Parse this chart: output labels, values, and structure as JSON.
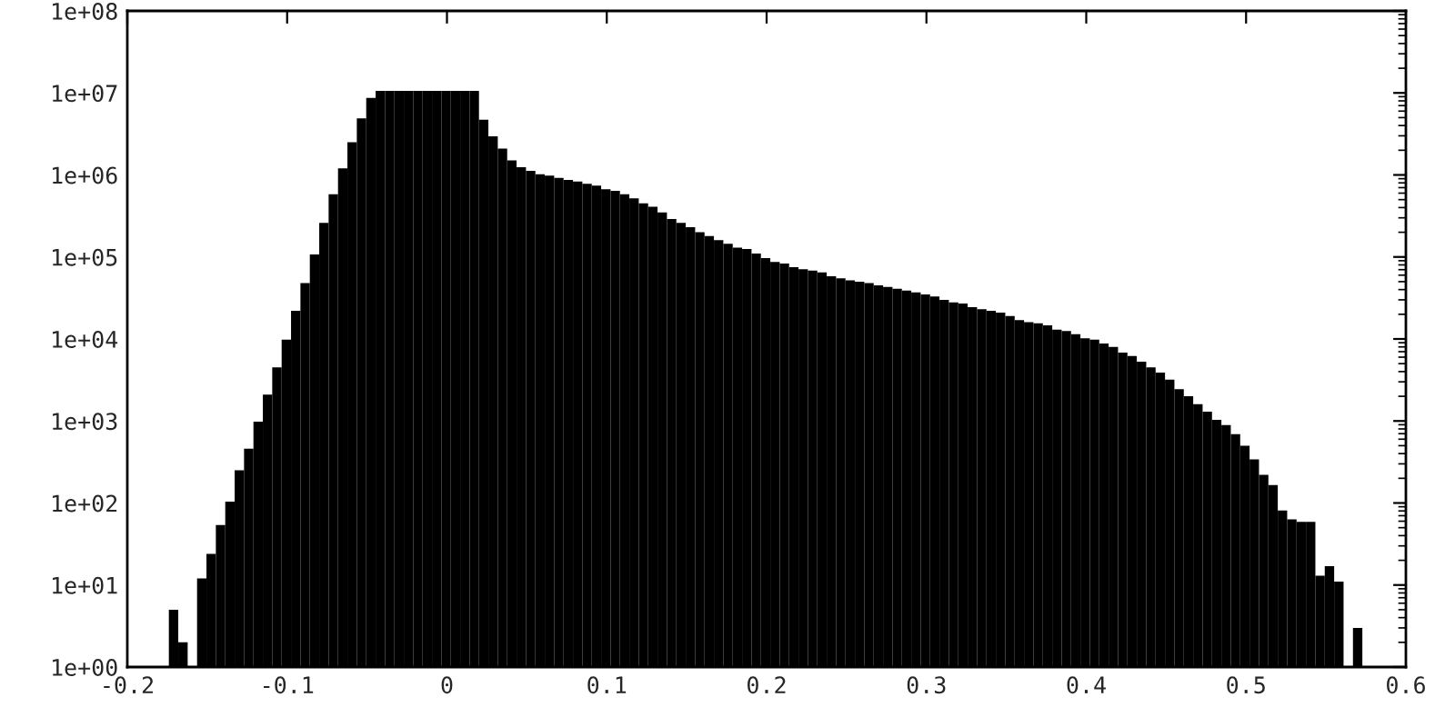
{
  "chart_data": {
    "type": "histogram",
    "bins": [
      -0.174,
      -0.16812,
      -0.16224,
      -0.15636,
      -0.15048,
      -0.1446,
      -0.13872,
      -0.13284,
      -0.12696,
      -0.12108,
      -0.1152,
      -0.10932,
      -0.10344,
      -0.09756,
      -0.09168,
      -0.0858,
      -0.07992,
      -0.07404,
      -0.06816,
      -0.06228,
      -0.0564,
      -0.05052,
      -0.04464,
      -0.03876,
      -0.03288,
      -0.027,
      -0.02112,
      -0.01524,
      -0.00936,
      -0.00348,
      0.0024,
      0.00828,
      0.01416,
      0.02004,
      0.02592,
      0.0318,
      0.03768,
      0.04356,
      0.04944,
      0.05532,
      0.0612,
      0.06708,
      0.07296,
      0.07884,
      0.08472,
      0.0906,
      0.09648,
      0.10236,
      0.10824,
      0.11412,
      0.12,
      0.12588,
      0.13176,
      0.13764,
      0.14352,
      0.1494,
      0.15528,
      0.16116,
      0.16704,
      0.17292,
      0.1788,
      0.18468,
      0.19056,
      0.19644,
      0.20232,
      0.2082,
      0.21408,
      0.21996,
      0.22584,
      0.23172,
      0.2376,
      0.24348,
      0.24936,
      0.25524,
      0.26112,
      0.267,
      0.27288,
      0.27876,
      0.28464,
      0.29052,
      0.2964,
      0.30228,
      0.30816,
      0.31404,
      0.31992,
      0.3258,
      0.33168,
      0.33756,
      0.34344,
      0.34932,
      0.3552,
      0.36108,
      0.36696,
      0.37284,
      0.37872,
      0.3846,
      0.39048,
      0.39636,
      0.40224,
      0.40812,
      0.414,
      0.41988,
      0.42576,
      0.43164,
      0.43752,
      0.4434,
      0.44928,
      0.45516,
      0.46104,
      0.46692,
      0.4728,
      0.47868,
      0.48456,
      0.49044,
      0.49632,
      0.5022,
      0.50808,
      0.51396,
      0.51984,
      0.52572,
      0.5316,
      0.53748,
      0.54336,
      0.54924,
      0.55512,
      0.561,
      0.56688,
      0.57276
    ],
    "values": [
      5,
      2,
      null,
      12,
      24,
      54,
      104,
      250,
      460,
      980,
      2100,
      4500,
      9800,
      22000,
      48000,
      107000,
      260000,
      580000,
      1200000,
      2500000,
      4900000,
      8700000,
      10600000,
      10600000,
      10600000,
      10600000,
      10600000,
      10600000,
      10600000,
      10600000,
      10600000,
      10600000,
      10600000,
      4700000,
      2950000,
      2100000,
      1500000,
      1240000,
      1120000,
      1020000,
      980000,
      920000,
      870000,
      830000,
      780000,
      740000,
      670000,
      640000,
      580000,
      520000,
      450000,
      410000,
      350000,
      290000,
      260000,
      230000,
      200000,
      180000,
      160000,
      145000,
      130000,
      125000,
      110000,
      97000,
      87000,
      83000,
      75000,
      71000,
      68000,
      65000,
      58000,
      55000,
      52000,
      50000,
      48000,
      45000,
      43000,
      41000,
      39000,
      37000,
      35000,
      33000,
      30000,
      28000,
      27000,
      24500,
      23000,
      22000,
      21000,
      19000,
      17000,
      16000,
      15500,
      14700,
      13000,
      12500,
      11400,
      10200,
      9800,
      8800,
      8000,
      6800,
      6200,
      5300,
      4500,
      3900,
      3200,
      2450,
      2000,
      1600,
      1300,
      1030,
      890,
      690,
      500,
      340,
      220,
      165,
      81,
      63,
      59,
      59,
      13,
      17,
      11,
      null,
      3
    ],
    "color": "#000000",
    "log": "y",
    "xlim": [
      -0.2,
      0.6
    ],
    "xticks": [
      -0.2,
      -0.1,
      0,
      0.1,
      0.2,
      0.3,
      0.4,
      0.5,
      0.6
    ],
    "ylim": [
      1,
      100000000
    ],
    "yticks": [
      {
        "value": 1,
        "label": "1e+00"
      },
      {
        "value": 10,
        "label": "1e+01"
      },
      {
        "value": 100,
        "label": "1e+02"
      },
      {
        "value": 1000,
        "label": "1e+03"
      },
      {
        "value": 10000,
        "label": "1e+04"
      },
      {
        "value": 100000,
        "label": "1e+05"
      },
      {
        "value": 1000000,
        "label": "1e+06"
      },
      {
        "value": 10000000,
        "label": "1e+07"
      },
      {
        "value": 100000000,
        "label": "1e+08"
      }
    ],
    "grid": false,
    "legend": false
  }
}
